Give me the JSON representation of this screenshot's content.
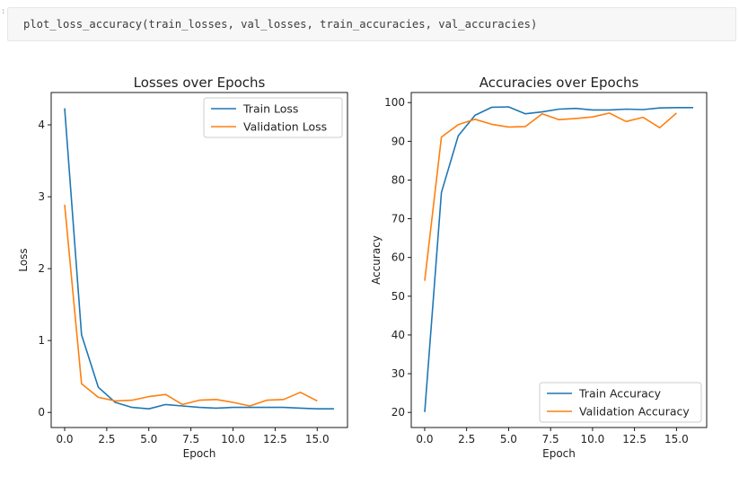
{
  "cell": {
    "prompt": ":",
    "code": "plot_loss_accuracy(train_losses, val_losses, train_accuracies, val_accuracies)"
  },
  "colors": {
    "train": "#1f77b4",
    "validation": "#ff7f0e"
  },
  "chart_data": [
    {
      "type": "line",
      "title": "Losses over Epochs",
      "xlabel": "Epoch",
      "ylabel": "Loss",
      "xlim": [
        -0.8,
        16.8
      ],
      "ylim": [
        -0.21,
        4.45
      ],
      "xticks": [
        0,
        2.5,
        5,
        7.5,
        10,
        12.5,
        15
      ],
      "xtick_labels": [
        "0.0",
        "2.5",
        "5.0",
        "7.5",
        "10.0",
        "12.5",
        "15.0"
      ],
      "yticks": [
        0,
        1,
        2,
        3,
        4
      ],
      "ytick_labels": [
        "0",
        "1",
        "2",
        "3",
        "4"
      ],
      "legend": "top-right",
      "grid": false,
      "series": [
        {
          "name": "Train Loss",
          "x": [
            0,
            1,
            2,
            3,
            4,
            5,
            6,
            7,
            8,
            9,
            10,
            11,
            12,
            13,
            14,
            15,
            16
          ],
          "values": [
            4.23,
            1.08,
            0.35,
            0.14,
            0.07,
            0.05,
            0.11,
            0.09,
            0.07,
            0.06,
            0.07,
            0.07,
            0.07,
            0.07,
            0.06,
            0.05,
            0.05
          ]
        },
        {
          "name": "Validation Loss",
          "x": [
            0,
            1,
            2,
            3,
            4,
            5,
            6,
            7,
            8,
            9,
            10,
            11,
            12,
            13,
            14,
            15
          ],
          "values": [
            2.89,
            0.4,
            0.21,
            0.16,
            0.17,
            0.22,
            0.25,
            0.11,
            0.17,
            0.18,
            0.14,
            0.09,
            0.17,
            0.18,
            0.28,
            0.16
          ]
        }
      ]
    },
    {
      "type": "line",
      "title": "Accuracies over Epochs",
      "xlabel": "Epoch",
      "ylabel": "Accuracy",
      "xlim": [
        -0.8,
        16.8
      ],
      "ylim": [
        16.1,
        102.6
      ],
      "xticks": [
        0,
        2.5,
        5,
        7.5,
        10,
        12.5,
        15
      ],
      "xtick_labels": [
        "0.0",
        "2.5",
        "5.0",
        "7.5",
        "10.0",
        "12.5",
        "15.0"
      ],
      "yticks": [
        20,
        30,
        40,
        50,
        60,
        70,
        80,
        90,
        100
      ],
      "ytick_labels": [
        "20",
        "30",
        "40",
        "50",
        "60",
        "70",
        "80",
        "90",
        "100"
      ],
      "legend": "bottom-right",
      "grid": false,
      "series": [
        {
          "name": "Train Accuracy",
          "x": [
            0,
            1,
            2,
            3,
            4,
            5,
            6,
            7,
            8,
            9,
            10,
            11,
            12,
            13,
            14,
            15,
            16
          ],
          "values": [
            20.1,
            76.8,
            91.4,
            96.7,
            98.8,
            98.9,
            97.1,
            97.6,
            98.3,
            98.5,
            98.1,
            98.1,
            98.3,
            98.2,
            98.6,
            98.7,
            98.7
          ]
        },
        {
          "name": "Validation Accuracy",
          "x": [
            0,
            1,
            2,
            3,
            4,
            5,
            6,
            7,
            8,
            9,
            10,
            11,
            12,
            13,
            14,
            15
          ],
          "values": [
            54.0,
            91.1,
            94.3,
            95.7,
            94.4,
            93.7,
            93.8,
            97.1,
            95.6,
            95.9,
            96.3,
            97.3,
            95.1,
            96.2,
            93.5,
            97.3
          ]
        }
      ]
    }
  ]
}
